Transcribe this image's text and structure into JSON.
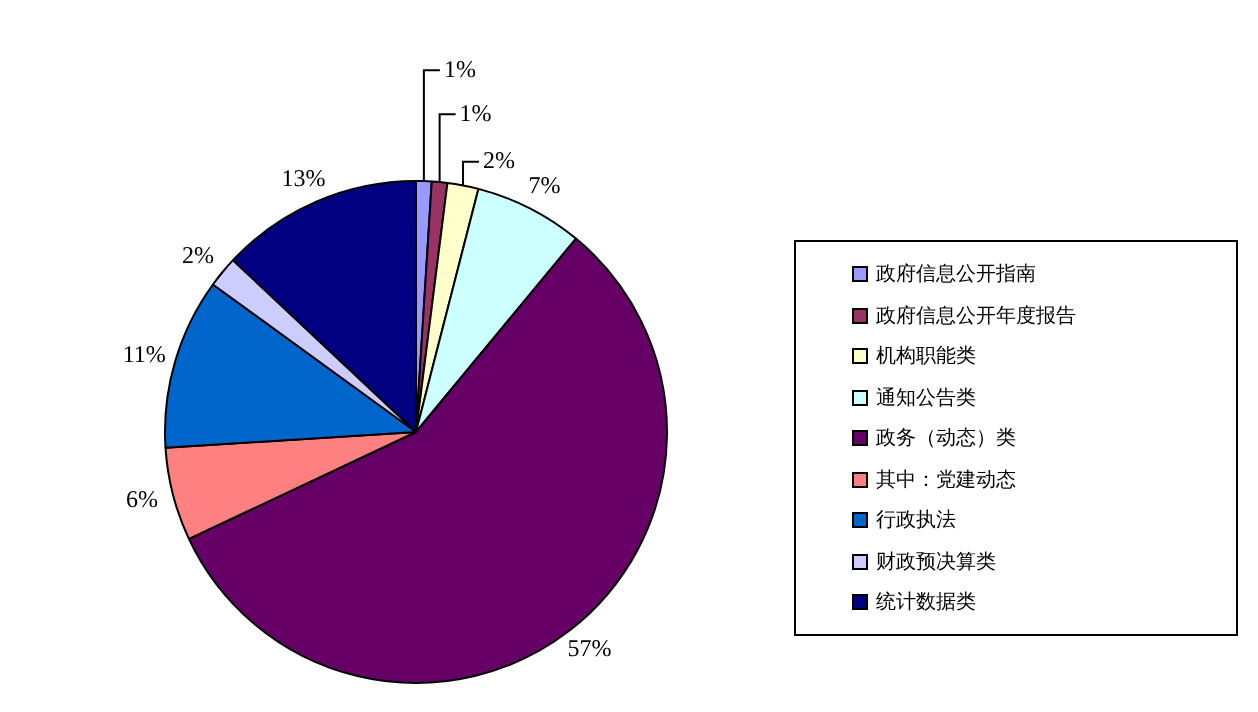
{
  "chart_data": {
    "type": "pie",
    "categories": [
      "政府信息公开指南",
      "政府信息公开年度报告",
      "机构职能类",
      "通知公告类",
      "政务（动态）类",
      "其中：党建动态",
      "行政执法",
      "财政预决算类",
      "统计数据类"
    ],
    "values": [
      1,
      1,
      2,
      7,
      57,
      6,
      11,
      2,
      13
    ],
    "value_labels": [
      "1%",
      "1%",
      "2%",
      "7%",
      "57%",
      "6%",
      "11%",
      "2%",
      "13%"
    ],
    "colors": [
      "#9999ff",
      "#993366",
      "#ffffcc",
      "#ccffff",
      "#660066",
      "#ff8080",
      "#0066cc",
      "#ccccff",
      "#000080"
    ],
    "legend": "right"
  }
}
